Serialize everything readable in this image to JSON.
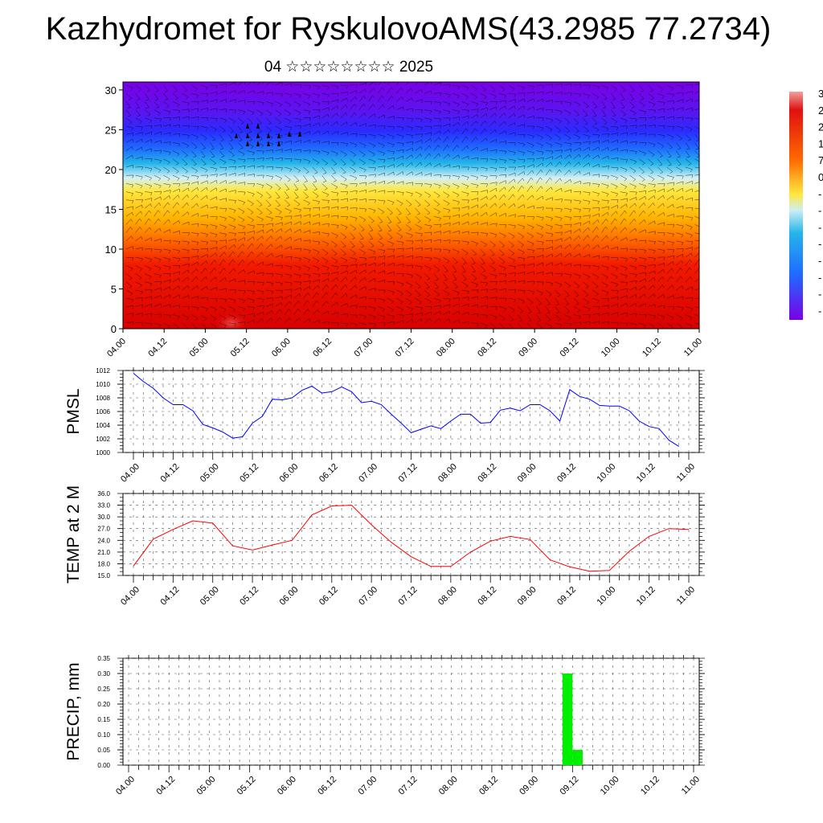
{
  "header": {
    "title": "Kazhydromet for RyskulovoAMS(43.2985 77.2734)",
    "subtitle": "04 ☆☆☆☆☆☆☆☆ 2025"
  },
  "colors": {
    "pmsl_line": "#0000ff",
    "temp_line": "#ff0000",
    "precip_bar": "#00ee00"
  },
  "colorbar_labels": [
    "3",
    "2",
    "2",
    "1",
    "7",
    "0",
    "-",
    "-",
    "-",
    "-",
    "-",
    "-",
    "-",
    "-"
  ],
  "chart_data": [
    {
      "type": "heatmap",
      "name": "cross-section",
      "x_ticks": [
        "04.00",
        "04.12",
        "05.00",
        "05.12",
        "06.00",
        "06.12",
        "07.00",
        "07.12",
        "08.00",
        "08.12",
        "09.00",
        "09.12",
        "10.00",
        "10.12",
        "11.00"
      ],
      "y_ticks": [
        "0",
        "5",
        "10",
        "15",
        "20",
        "25",
        "30"
      ],
      "ylim": [
        0,
        31
      ],
      "xlim": [
        0,
        168
      ],
      "overlay": "wind barbs",
      "color_scale": [
        "#7a00e6",
        "#3b1cff",
        "#1f6bff",
        "#24b5ea",
        "#bfe9f5",
        "#ffe840",
        "#ffb400",
        "#ff6a00",
        "#f21a00",
        "#d40000"
      ]
    },
    {
      "type": "line",
      "ylabel": "PMSL",
      "ylim": [
        1000,
        1012
      ],
      "y_ticks": [
        "1012",
        "1010",
        "1008",
        "1006",
        "1004",
        "1002",
        "1000"
      ],
      "x_ticks": [
        "04.00",
        "04.12",
        "05.00",
        "05.12",
        "06.00",
        "06.12",
        "07.00",
        "07.12",
        "08.00",
        "08.12",
        "09.00",
        "09.12",
        "10.00",
        "10.12",
        "11.00"
      ],
      "x_hours": [
        0,
        3,
        6,
        9,
        12,
        15,
        18,
        21,
        24,
        27,
        30,
        33,
        36,
        39,
        42,
        45,
        48,
        51,
        54,
        57,
        60,
        63,
        66,
        69,
        72,
        75,
        78,
        81,
        84,
        87,
        90,
        93,
        96,
        99,
        102,
        105,
        108,
        111,
        114,
        117,
        120,
        123,
        126,
        129,
        132,
        135,
        138,
        141,
        144,
        147,
        150,
        153,
        156,
        159,
        162,
        165
      ],
      "values": [
        1011.6,
        1010.4,
        1009.4,
        1008.0,
        1007.0,
        1007.0,
        1006.1,
        1004.1,
        1003.6,
        1003.0,
        1002.1,
        1002.3,
        1004.3,
        1005.3,
        1007.8,
        1007.7,
        1008.0,
        1009.1,
        1009.7,
        1008.7,
        1008.9,
        1009.6,
        1008.9,
        1007.3,
        1007.5,
        1007.0,
        1005.6,
        1004.3,
        1002.9,
        1003.4,
        1003.9,
        1003.5,
        1004.6,
        1005.6,
        1005.6,
        1004.3,
        1004.4,
        1006.2,
        1006.5,
        1006.1,
        1007.0,
        1007.0,
        1006.1,
        1004.6,
        1009.2,
        1008.2,
        1007.8,
        1006.9,
        1006.8,
        1006.8,
        1006.1,
        1004.6,
        1003.8,
        1003.5,
        1001.8,
        1000.9
      ]
    },
    {
      "type": "line",
      "ylabel": "TEMP at 2 M",
      "ylim": [
        15,
        36
      ],
      "y_ticks": [
        "36.0",
        "33.0",
        "30.0",
        "27.0",
        "24.0",
        "21.0",
        "18.0",
        "15.0"
      ],
      "x_ticks": [
        "04.00",
        "04.12",
        "05.00",
        "05.12",
        "06.00",
        "06.12",
        "07.00",
        "07.12",
        "08.00",
        "08.12",
        "09.00",
        "09.12",
        "10.00",
        "10.12",
        "11.00"
      ],
      "x_hours": [
        0,
        6,
        12,
        18,
        24,
        30,
        36,
        42,
        48,
        54,
        60,
        66,
        72,
        78,
        84,
        90,
        96,
        102,
        108,
        114,
        120,
        126,
        132,
        138,
        144,
        150,
        156,
        162,
        168
      ],
      "values": [
        17.4,
        24.3,
        26.8,
        29.0,
        28.4,
        22.6,
        21.5,
        22.8,
        24.0,
        30.5,
        32.8,
        33.0,
        28.0,
        23.5,
        19.8,
        17.3,
        17.3,
        21.0,
        23.8,
        25.0,
        24.2,
        19.0,
        17.2,
        16.1,
        16.3,
        21.2,
        25.0,
        27.0,
        26.8
      ]
    },
    {
      "type": "bar",
      "ylabel": "PRECIP, mm",
      "ylim": [
        0,
        0.35
      ],
      "y_ticks": [
        "0.35",
        "0.30",
        "0.25",
        "0.20",
        "0.15",
        "0.10",
        "0.05",
        "0.00"
      ],
      "x_ticks": [
        "04.00",
        "04.12",
        "05.00",
        "05.12",
        "06.00",
        "06.12",
        "07.00",
        "07.12",
        "08.00",
        "08.12",
        "09.00",
        "09.12",
        "10.00",
        "10.12",
        "11.00"
      ],
      "x_hours": [
        129,
        132
      ],
      "values": [
        0.3,
        0.05
      ]
    }
  ]
}
